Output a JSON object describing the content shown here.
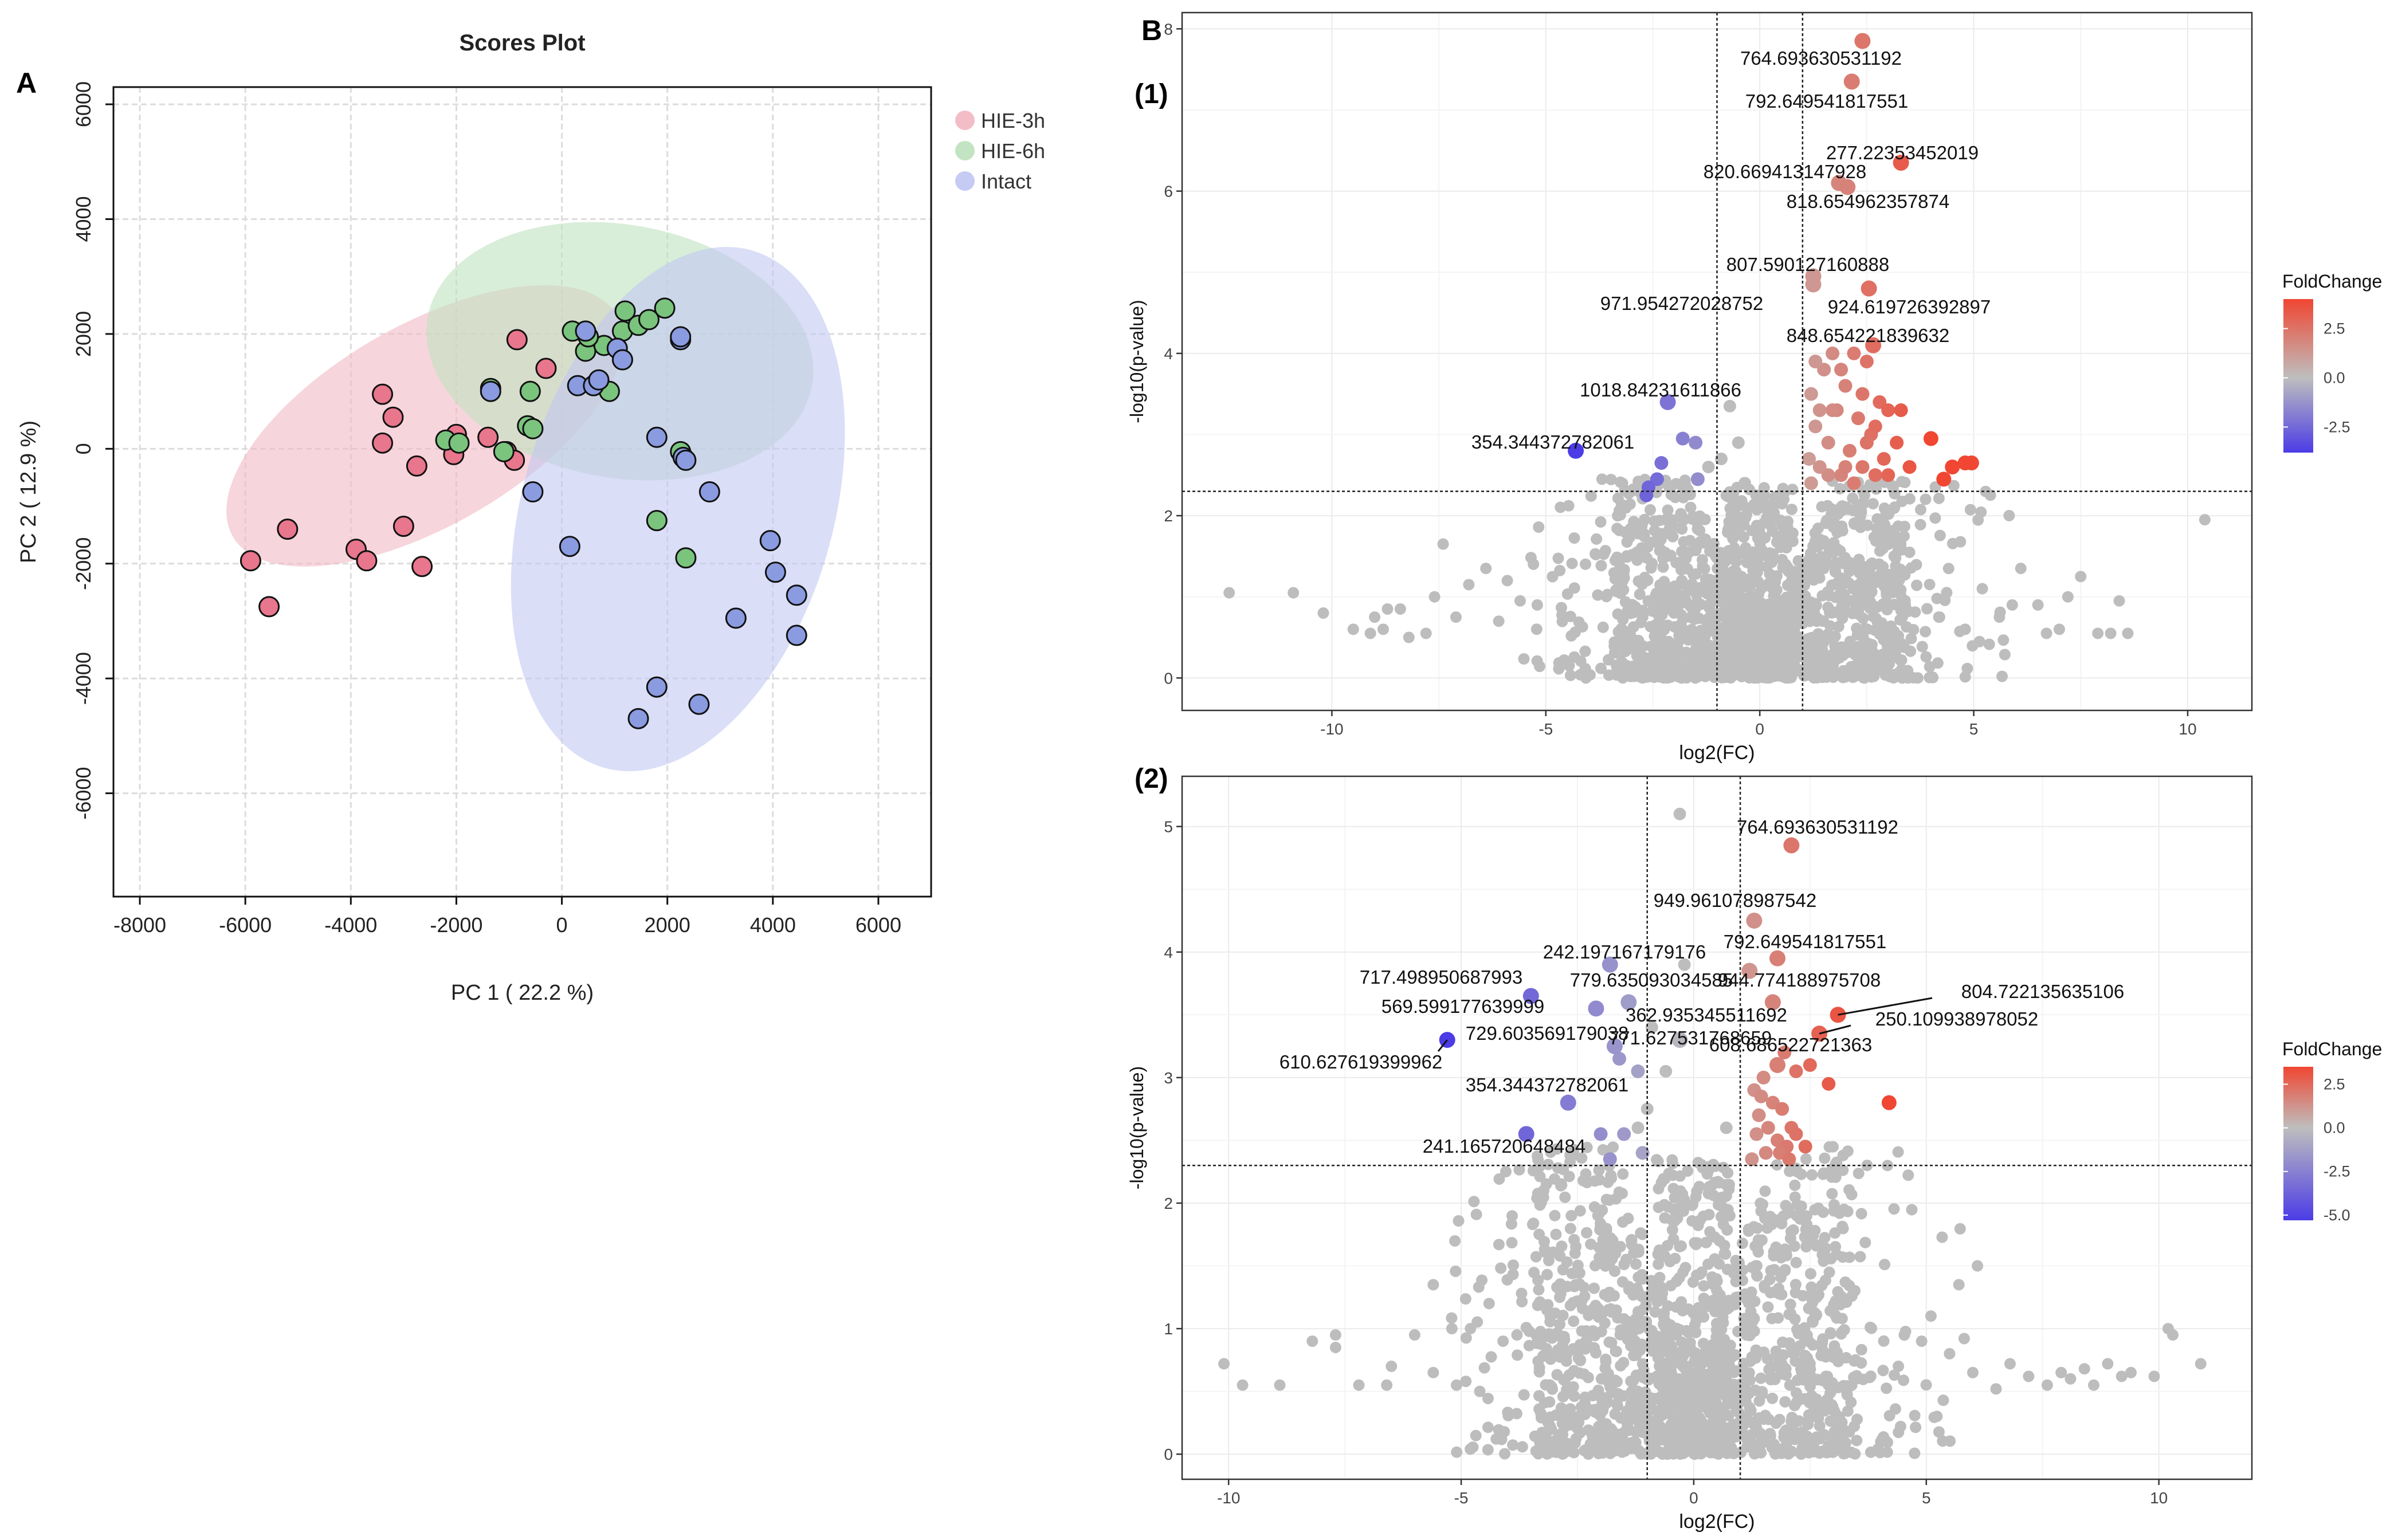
{
  "panel_labels": {
    "A": "A",
    "B": "B",
    "sub1": "(1)",
    "sub2": "(2)"
  },
  "chart_data": [
    {
      "id": "scores",
      "type": "scatter",
      "title": "Scores Plot",
      "xlabel": "PC 1 ( 22.2 %)",
      "ylabel": "PC 2 ( 12.9 %)",
      "xlim": [
        -8500,
        7000
      ],
      "ylim": [
        -7800,
        6300
      ],
      "xticks": [
        -8000,
        -6000,
        -4000,
        -2000,
        0,
        2000,
        4000,
        6000
      ],
      "yticks": [
        -6000,
        -4000,
        -2000,
        0,
        2000,
        4000,
        6000
      ],
      "legend_position": "top-right",
      "series": [
        {
          "name": "HIE-3h",
          "color": "#e8768c",
          "fill": "#f2b9c4",
          "points": [
            [
              -5900,
              -1950
            ],
            [
              -5550,
              -2750
            ],
            [
              -5200,
              -1400
            ],
            [
              -3900,
              -1750
            ],
            [
              -3700,
              -1950
            ],
            [
              -3400,
              950
            ],
            [
              -3200,
              550
            ],
            [
              -3400,
              100
            ],
            [
              -3000,
              -1350
            ],
            [
              -2650,
              -2050
            ],
            [
              -2750,
              -300
            ],
            [
              -2000,
              250
            ],
            [
              -2050,
              -100
            ],
            [
              -1400,
              200
            ],
            [
              -1050,
              -50
            ],
            [
              -900,
              -200
            ],
            [
              -850,
              1900
            ],
            [
              -300,
              1400
            ]
          ],
          "ellipse": {
            "cx": -2600,
            "cy": 400,
            "rx": 4200,
            "ry": 1900,
            "angle": 30
          }
        },
        {
          "name": "HIE-6h",
          "color": "#7bc47e",
          "fill": "#bfe3bf",
          "points": [
            [
              -2200,
              150
            ],
            [
              -1950,
              100
            ],
            [
              -1350,
              1050
            ],
            [
              -1100,
              -50
            ],
            [
              -650,
              400
            ],
            [
              -550,
              350
            ],
            [
              -600,
              1000
            ],
            [
              200,
              2050
            ],
            [
              450,
              1700
            ],
            [
              800,
              1800
            ],
            [
              900,
              1000
            ],
            [
              1150,
              2050
            ],
            [
              1200,
              2400
            ],
            [
              1450,
              2150
            ],
            [
              1650,
              2250
            ],
            [
              1950,
              2450
            ],
            [
              1800,
              -1250
            ],
            [
              2350,
              -1900
            ],
            [
              2250,
              -50
            ],
            [
              500,
              1950
            ]
          ],
          "ellipse": {
            "cx": 1100,
            "cy": 1700,
            "rx": 3700,
            "ry": 2400,
            "angle": -10
          }
        },
        {
          "name": "Intact",
          "color": "#8a9be0",
          "fill": "#c2c8f2",
          "points": [
            [
              -1350,
              1000
            ],
            [
              -550,
              -750
            ],
            [
              150,
              -1700
            ],
            [
              300,
              1100
            ],
            [
              600,
              1100
            ],
            [
              700,
              1200
            ],
            [
              1050,
              1750
            ],
            [
              1150,
              1550
            ],
            [
              1800,
              200
            ],
            [
              2250,
              1900
            ],
            [
              2300,
              -150
            ],
            [
              2350,
              -200
            ],
            [
              2800,
              -750
            ],
            [
              3300,
              -2950
            ],
            [
              3950,
              -1600
            ],
            [
              4050,
              -2150
            ],
            [
              4450,
              -2550
            ],
            [
              4450,
              -3250
            ],
            [
              2600,
              -4450
            ],
            [
              1800,
              -4150
            ],
            [
              1450,
              -4700
            ],
            [
              450,
              2050
            ],
            [
              2250,
              1950
            ]
          ],
          "ellipse": {
            "cx": 2200,
            "cy": -1050,
            "rx": 5100,
            "ry": 2950,
            "angle": 74
          }
        }
      ]
    },
    {
      "id": "volcano1",
      "type": "scatter",
      "title": "(1)",
      "xlabel": "log2(FC)",
      "ylabel": "-log10(p-value)",
      "xlim": [
        -13.5,
        11.5
      ],
      "ylim": [
        -0.4,
        8.2
      ],
      "xticks": [
        -10,
        -5,
        0,
        5,
        10
      ],
      "yticks": [
        0,
        2,
        4,
        6,
        8
      ],
      "fc_threshold": 1,
      "p_threshold": 2.3,
      "legend": {
        "title": "FoldChange",
        "ticks": [
          "2.5",
          "0.0",
          "-2.5"
        ],
        "tick_values": [
          2.5,
          0,
          -2.5
        ],
        "range": [
          -3.8,
          4.0
        ]
      },
      "labeled_points": [
        {
          "label": "764.693630531192",
          "x": 2.4,
          "y": 7.85,
          "fc": 2.4
        },
        {
          "label": "792.649541817551",
          "x": 2.15,
          "y": 7.35,
          "fc": 2.2
        },
        {
          "label": "277.22353452019",
          "x": 3.3,
          "y": 6.35,
          "fc": 3.3
        },
        {
          "label": "820.669413147928",
          "x": 1.85,
          "y": 6.1,
          "fc": 1.9
        },
        {
          "label": "818.654962357874",
          "x": 2.05,
          "y": 6.05,
          "fc": 2.0
        },
        {
          "label": "807.590127160888",
          "x": 1.25,
          "y": 4.95,
          "fc": 1.3
        },
        {
          "label": "971.954272028752",
          "x": 1.25,
          "y": 4.85,
          "fc": 1.3
        },
        {
          "label": "924.619726392897",
          "x": 2.55,
          "y": 4.8,
          "fc": 2.6
        },
        {
          "label": "848.654221839632",
          "x": 2.65,
          "y": 4.1,
          "fc": 2.7
        },
        {
          "label": "1018.84231611866",
          "x": -2.15,
          "y": 3.4,
          "fc": -2.2
        },
        {
          "label": "354.344372782061",
          "x": -4.3,
          "y": 2.8,
          "fc": -4.3
        }
      ],
      "up_points": [
        [
          1.2,
          3.5
        ],
        [
          1.3,
          3.1
        ],
        [
          1.4,
          2.6
        ],
        [
          1.5,
          3.8
        ],
        [
          1.6,
          2.9
        ],
        [
          1.7,
          4.0
        ],
        [
          1.8,
          3.3
        ],
        [
          1.9,
          2.5
        ],
        [
          2.0,
          3.6
        ],
        [
          2.1,
          2.8
        ],
        [
          2.2,
          4.0
        ],
        [
          2.3,
          3.2
        ],
        [
          2.4,
          2.6
        ],
        [
          2.5,
          3.9
        ],
        [
          2.6,
          3.0
        ],
        [
          2.7,
          2.5
        ],
        [
          2.8,
          3.4
        ],
        [
          2.9,
          2.7
        ],
        [
          3.0,
          3.3
        ],
        [
          3.2,
          2.9
        ],
        [
          3.3,
          3.3
        ],
        [
          3.5,
          2.6
        ],
        [
          1.3,
          3.9
        ],
        [
          1.6,
          2.5
        ],
        [
          1.9,
          3.8
        ],
        [
          2.2,
          2.4
        ],
        [
          2.4,
          3.5
        ],
        [
          1.4,
          3.3
        ],
        [
          2.7,
          3.1
        ],
        [
          1.15,
          2.7
        ],
        [
          1.2,
          2.4
        ],
        [
          3.0,
          2.5
        ],
        [
          2.0,
          2.6
        ],
        [
          1.7,
          3.3
        ],
        [
          2.5,
          2.9
        ]
      ],
      "up_strong": [
        [
          4.0,
          2.95
        ],
        [
          4.3,
          2.45
        ],
        [
          4.5,
          2.6
        ],
        [
          4.8,
          2.65
        ],
        [
          4.95,
          2.65
        ]
      ],
      "down_points": [
        [
          -1.8,
          2.95
        ],
        [
          -1.5,
          2.9
        ],
        [
          -2.3,
          2.65
        ],
        [
          -2.4,
          2.45
        ],
        [
          -2.6,
          2.35
        ],
        [
          -1.45,
          2.45
        ],
        [
          -2.65,
          2.25
        ]
      ],
      "sig_gray": [
        [
          -0.7,
          3.35
        ],
        [
          -0.5,
          2.9
        ],
        [
          -1.2,
          2.6
        ],
        [
          -0.35,
          2.4
        ],
        [
          -0.9,
          2.7
        ],
        [
          -2.1,
          2.35
        ]
      ],
      "scatter_gray": [
        [
          -12.4,
          1.05
        ],
        [
          -10.9,
          1.05
        ],
        [
          -10.2,
          0.8
        ],
        [
          -9.5,
          0.6
        ],
        [
          -9.0,
          0.75
        ],
        [
          -8.7,
          0.85
        ],
        [
          -8.4,
          0.85
        ],
        [
          -7.4,
          1.65
        ],
        [
          -7.6,
          1.0
        ],
        [
          -6.8,
          1.15
        ],
        [
          -6.4,
          1.35
        ],
        [
          -5.9,
          1.2
        ],
        [
          -5.6,
          0.95
        ],
        [
          -5.2,
          0.9
        ],
        [
          -7.8,
          0.55
        ],
        [
          -8.2,
          0.5
        ],
        [
          -9.1,
          0.55
        ],
        [
          -8.8,
          0.6
        ],
        [
          -7.1,
          0.75
        ],
        [
          -6.1,
          0.7
        ],
        [
          10.4,
          1.95
        ],
        [
          8.6,
          0.55
        ],
        [
          8.4,
          0.95
        ],
        [
          7.5,
          1.25
        ],
        [
          7.2,
          1.0
        ],
        [
          6.5,
          0.9
        ],
        [
          6.1,
          1.35
        ],
        [
          5.9,
          0.9
        ],
        [
          5.2,
          1.1
        ],
        [
          5.6,
          0.75
        ],
        [
          8.2,
          0.55
        ],
        [
          7.9,
          0.55
        ],
        [
          7.0,
          0.6
        ],
        [
          6.7,
          0.55
        ],
        [
          4.8,
          0.6
        ],
        [
          4.2,
          0.75
        ]
      ]
    },
    {
      "id": "volcano2",
      "type": "scatter",
      "title": "(2)",
      "xlabel": "log2(FC)",
      "ylabel": "-log10(p-value)",
      "xlim": [
        -11,
        12
      ],
      "ylim": [
        -0.2,
        5.4
      ],
      "xticks": [
        -10,
        -5,
        0,
        5,
        10
      ],
      "yticks": [
        0,
        1,
        2,
        3,
        4,
        5
      ],
      "fc_threshold": 1,
      "p_threshold": 2.3,
      "legend": {
        "title": "FoldChange",
        "ticks": [
          "2.5",
          "0.0",
          "-2.5",
          "-5.0"
        ],
        "tick_values": [
          2.5,
          0,
          -2.5,
          -5.0
        ],
        "range": [
          -5.3,
          3.5
        ]
      },
      "labeled_points": [
        {
          "label": "764.693630531192",
          "x": 2.1,
          "y": 4.85,
          "fc": 2.1
        },
        {
          "label": "949.961078987542",
          "x": 1.3,
          "y": 4.25,
          "fc": 1.3
        },
        {
          "label": "242.197167179176",
          "x": -1.8,
          "y": 3.9,
          "fc": -1.8
        },
        {
          "label": "792.649541817551",
          "x": 1.8,
          "y": 3.95,
          "fc": 1.8
        },
        {
          "label": "717.498950687993",
          "x": -3.5,
          "y": 3.65,
          "fc": -3.5
        },
        {
          "label": "779.635093034585",
          "x": -1.4,
          "y": 3.6,
          "fc": -1.4
        },
        {
          "label": "944.774188975708",
          "x": 1.2,
          "y": 3.85,
          "fc": 1.2
        },
        {
          "label": "804.722135635106",
          "x": 3.1,
          "y": 3.5,
          "fc": 3.1
        },
        {
          "label": "569.599177639999",
          "x": -2.1,
          "y": 3.55,
          "fc": -2.1
        },
        {
          "label": "362.935345511692",
          "x": 1.7,
          "y": 3.6,
          "fc": 1.7
        },
        {
          "label": "250.109938978052",
          "x": 2.7,
          "y": 3.35,
          "fc": 2.7
        },
        {
          "label": "729.603569179038",
          "x": -1.7,
          "y": 3.25,
          "fc": -1.7
        },
        {
          "label": "771.627531768659",
          "x": -0.3,
          "y": 3.3,
          "fc": -0.3
        },
        {
          "label": "610.627619399962",
          "x": -5.3,
          "y": 3.3,
          "fc": -5.3
        },
        {
          "label": "608.686522721363",
          "x": 1.8,
          "y": 3.1,
          "fc": 1.8
        },
        {
          "label": "354.344372782061",
          "x": -2.7,
          "y": 2.8,
          "fc": -2.7
        },
        {
          "label": "241.165720648484",
          "x": -3.6,
          "y": 2.55,
          "fc": -3.6
        }
      ],
      "up_points": [
        [
          1.3,
          2.9
        ],
        [
          1.4,
          2.7
        ],
        [
          1.5,
          3.0
        ],
        [
          1.6,
          2.6
        ],
        [
          1.7,
          2.8
        ],
        [
          1.8,
          2.5
        ],
        [
          1.9,
          2.75
        ],
        [
          2.0,
          2.45
        ],
        [
          2.1,
          2.6
        ],
        [
          1.35,
          2.55
        ],
        [
          1.25,
          2.35
        ],
        [
          1.55,
          2.4
        ],
        [
          1.85,
          2.4
        ],
        [
          2.05,
          2.35
        ],
        [
          1.45,
          2.85
        ],
        [
          2.2,
          3.05
        ],
        [
          2.5,
          3.1
        ],
        [
          2.9,
          2.95
        ],
        [
          2.4,
          2.45
        ],
        [
          2.2,
          2.55
        ],
        [
          1.95,
          3.2
        ]
      ],
      "up_strong": [
        [
          4.2,
          2.8
        ]
      ],
      "down_points": [
        [
          -1.6,
          3.15
        ],
        [
          -1.2,
          3.05
        ],
        [
          -2.0,
          2.55
        ],
        [
          -1.5,
          2.55
        ],
        [
          -1.1,
          2.4
        ],
        [
          -1.8,
          2.35
        ]
      ],
      "sig_gray": [
        [
          -0.3,
          5.1
        ],
        [
          -0.2,
          3.9
        ],
        [
          -0.6,
          3.05
        ],
        [
          -0.9,
          3.4
        ],
        [
          -1.0,
          2.75
        ],
        [
          -1.2,
          2.6
        ],
        [
          0.7,
          2.6
        ]
      ],
      "scatter_gray": [
        [
          -10.1,
          0.72
        ],
        [
          -9.7,
          0.55
        ],
        [
          -8.9,
          0.55
        ],
        [
          -8.2,
          0.9
        ],
        [
          -7.7,
          0.85
        ],
        [
          -7.7,
          0.95
        ],
        [
          -7.2,
          0.55
        ],
        [
          -6.6,
          0.55
        ],
        [
          -6.0,
          0.95
        ],
        [
          -5.6,
          0.65
        ],
        [
          -5.1,
          0.55
        ],
        [
          -4.9,
          0.58
        ],
        [
          -4.6,
          0.5
        ],
        [
          -5.2,
          1.0
        ],
        [
          -5.6,
          1.35
        ],
        [
          -4.8,
          1.0
        ],
        [
          -4.4,
          1.2
        ],
        [
          -4.1,
          0.9
        ],
        [
          -3.8,
          0.95
        ],
        [
          -6.5,
          0.7
        ],
        [
          10.3,
          0.95
        ],
        [
          10.2,
          1.0
        ],
        [
          10.9,
          0.72
        ],
        [
          9.9,
          0.62
        ],
        [
          9.2,
          0.62
        ],
        [
          8.9,
          0.72
        ],
        [
          8.6,
          0.55
        ],
        [
          8.4,
          0.68
        ],
        [
          7.6,
          0.55
        ],
        [
          7.2,
          0.62
        ],
        [
          6.8,
          0.72
        ],
        [
          6.5,
          0.52
        ],
        [
          6.0,
          0.65
        ],
        [
          5.5,
          0.8
        ],
        [
          5.1,
          1.1
        ],
        [
          5.7,
          1.35
        ],
        [
          6.1,
          1.5
        ],
        [
          4.9,
          0.9
        ],
        [
          4.4,
          0.7
        ],
        [
          9.4,
          0.65
        ],
        [
          8.1,
          0.6
        ],
        [
          7.9,
          0.65
        ]
      ]
    }
  ]
}
